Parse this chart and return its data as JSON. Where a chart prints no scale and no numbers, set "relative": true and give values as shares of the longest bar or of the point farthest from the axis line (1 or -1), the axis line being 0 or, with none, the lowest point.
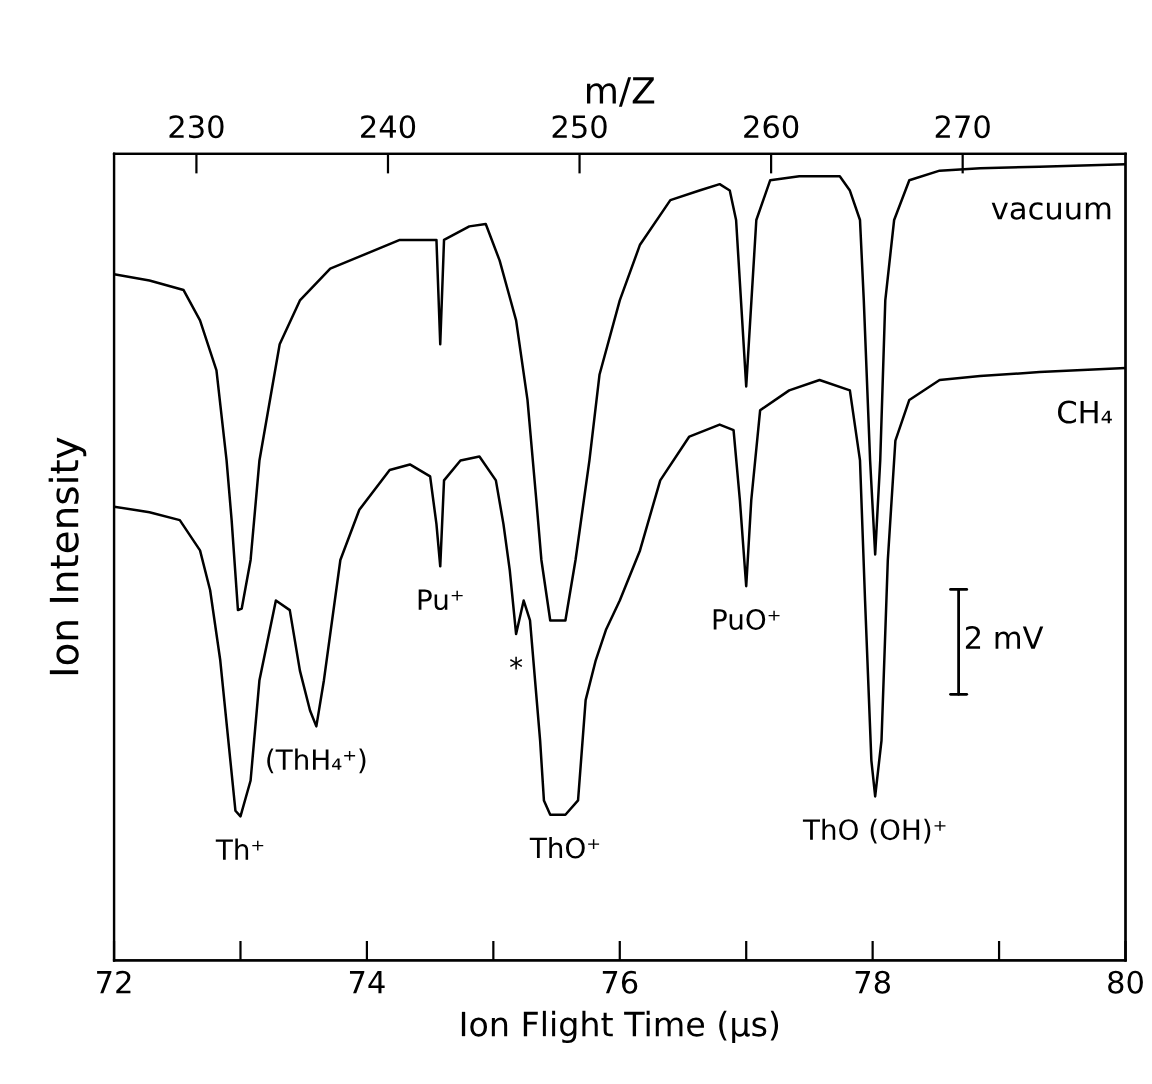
{
  "chart_data": {
    "type": "line",
    "relative": true,
    "xlabel": "Ion Flight Time (μs)",
    "ylabel": "Ion Intensity",
    "x2label": "m/Z",
    "xlim": [
      72,
      80
    ],
    "xticks": [
      72,
      {
        "value": 73,
        "label": null
      },
      74,
      {
        "value": 75,
        "label": null
      },
      76,
      {
        "value": 77,
        "label": null
      },
      78,
      {
        "value": 79,
        "label": null
      },
      80
    ],
    "x2lim": [
      225.7,
      278.5
    ],
    "x2ticks": [
      230,
      240,
      250,
      260,
      270
    ],
    "grid": false,
    "legend": false,
    "marker": "none",
    "line_style": "solid",
    "series": [
      {
        "name": "vacuum",
        "color": "#000000",
        "x": [
          72.0,
          72.28,
          72.55,
          72.68,
          72.81,
          72.89,
          72.93,
          72.98,
          73.01,
          73.08,
          73.15,
          73.31,
          73.47,
          73.71,
          73.94,
          74.26,
          74.55,
          74.58,
          74.61,
          74.81,
          74.94,
          75.05,
          75.18,
          75.27,
          75.34,
          75.38,
          75.45,
          75.57,
          75.65,
          75.76,
          75.84,
          76.0,
          76.16,
          76.4,
          76.63,
          76.79,
          76.87,
          76.92,
          77.0,
          77.08,
          77.19,
          77.42,
          77.74,
          77.82,
          77.9,
          77.93,
          77.98,
          78.02,
          78.06,
          78.1,
          78.17,
          78.29,
          78.53,
          78.85,
          79.32,
          80.0
        ],
        "values": [
          0.862,
          0.854,
          0.842,
          0.804,
          0.741,
          0.628,
          0.553,
          0.44,
          0.442,
          0.503,
          0.628,
          0.774,
          0.829,
          0.869,
          0.884,
          0.905,
          0.905,
          0.774,
          0.905,
          0.922,
          0.925,
          0.879,
          0.804,
          0.704,
          0.578,
          0.503,
          0.427,
          0.427,
          0.503,
          0.628,
          0.736,
          0.829,
          0.899,
          0.955,
          0.967,
          0.975,
          0.967,
          0.93,
          0.721,
          0.93,
          0.98,
          0.985,
          0.985,
          0.967,
          0.93,
          0.829,
          0.628,
          0.51,
          0.628,
          0.829,
          0.93,
          0.98,
          0.992,
          0.995,
          0.997,
          1.0
        ]
      },
      {
        "name": "CH₄",
        "color": "#000000",
        "x": [
          72.0,
          72.28,
          72.52,
          72.68,
          72.76,
          72.84,
          72.92,
          72.96,
          73.0,
          73.08,
          73.15,
          73.28,
          73.39,
          73.47,
          73.55,
          73.6,
          73.66,
          73.79,
          73.94,
          74.18,
          74.34,
          74.5,
          74.55,
          74.58,
          74.61,
          74.74,
          74.89,
          75.02,
          75.08,
          75.13,
          75.18,
          75.24,
          75.29,
          75.37,
          75.4,
          75.45,
          75.57,
          75.67,
          75.73,
          75.81,
          75.89,
          76.0,
          76.16,
          76.32,
          76.55,
          76.79,
          76.9,
          76.95,
          77.0,
          77.04,
          77.11,
          77.34,
          77.58,
          77.82,
          77.9,
          77.94,
          77.99,
          78.02,
          78.07,
          78.12,
          78.18,
          78.29,
          78.53,
          78.85,
          79.32,
          80.0
        ],
        "values": [
          0.57,
          0.563,
          0.553,
          0.515,
          0.465,
          0.377,
          0.251,
          0.188,
          0.181,
          0.226,
          0.352,
          0.452,
          0.44,
          0.364,
          0.314,
          0.294,
          0.352,
          0.503,
          0.566,
          0.616,
          0.623,
          0.608,
          0.548,
          0.495,
          0.603,
          0.628,
          0.633,
          0.603,
          0.548,
          0.49,
          0.41,
          0.452,
          0.427,
          0.276,
          0.201,
          0.183,
          0.183,
          0.201,
          0.327,
          0.377,
          0.415,
          0.452,
          0.515,
          0.603,
          0.658,
          0.673,
          0.666,
          0.578,
          0.47,
          0.578,
          0.691,
          0.716,
          0.729,
          0.716,
          0.628,
          0.452,
          0.251,
          0.206,
          0.276,
          0.503,
          0.653,
          0.704,
          0.729,
          0.734,
          0.739,
          0.744
        ]
      }
    ],
    "annotations": [
      {
        "text": "Th⁺",
        "x": 73.0,
        "y": 0.181
      },
      {
        "text": "(ThH₄⁺)",
        "x": 73.6,
        "y": 0.294
      },
      {
        "text": "Pu⁺",
        "x": 74.58,
        "y": 0.495
      },
      {
        "text": "*",
        "x": 75.18,
        "y": 0.41
      },
      {
        "text": "ThO⁺",
        "x": 75.57,
        "y": 0.183
      },
      {
        "text": "PuO⁺",
        "x": 77.0,
        "y": 0.47
      },
      {
        "text": "ThO (OH)⁺",
        "x": 78.02,
        "y": 0.206
      },
      "2 mV"
    ]
  }
}
